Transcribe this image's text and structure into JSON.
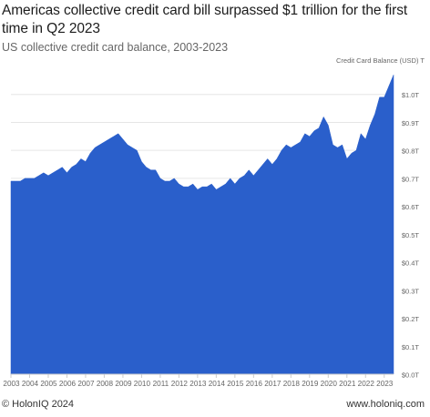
{
  "title": "Americas collective credit card bill surpassed $1 trillion for the first time in Q2 2023",
  "subtitle": "US collective credit card balance, 2003-2023",
  "footer": {
    "copyright": "© HolonIQ 2024",
    "site": "www.holoniq.com"
  },
  "colors": {
    "area": "#2a5fcb",
    "grid": "#e6e6e6",
    "tick_text": "#666666"
  },
  "chart_data": {
    "type": "area",
    "title": "",
    "ylabel": "Credit Card Balance (USD) T",
    "ylim": [
      0,
      1.1
    ],
    "yticks": [
      0.0,
      0.1,
      0.2,
      0.3,
      0.4,
      0.5,
      0.6,
      0.7,
      0.8,
      0.9,
      1.0
    ],
    "ytick_labels": [
      "$0.0T",
      "$0.1T",
      "$0.2T",
      "$0.3T",
      "$0.4T",
      "$0.5T",
      "$0.6T",
      "$0.7T",
      "$0.8T",
      "$0.9T",
      "$1.0T"
    ],
    "xtick_labels": [
      "2003",
      "2004",
      "2005",
      "2006",
      "2007",
      "2008",
      "2009",
      "2010",
      "2011",
      "2012",
      "2013",
      "2014",
      "2015",
      "2016",
      "2017",
      "2018",
      "2019",
      "2020",
      "2021",
      "2022",
      "2023"
    ],
    "xlim": [
      2003.0,
      2023.5
    ],
    "grid": true,
    "series": [
      {
        "x": [
          2003.0,
          2003.25,
          2003.5,
          2003.75,
          2004.0,
          2004.25,
          2004.5,
          2004.75,
          2005.0,
          2005.25,
          2005.5,
          2005.75,
          2006.0,
          2006.25,
          2006.5,
          2006.75,
          2007.0,
          2007.25,
          2007.5,
          2007.75,
          2008.0,
          2008.25,
          2008.5,
          2008.75,
          2009.0,
          2009.25,
          2009.5,
          2009.75,
          2010.0,
          2010.25,
          2010.5,
          2010.75,
          2011.0,
          2011.25,
          2011.5,
          2011.75,
          2012.0,
          2012.25,
          2012.5,
          2012.75,
          2013.0,
          2013.25,
          2013.5,
          2013.75,
          2014.0,
          2014.25,
          2014.5,
          2014.75,
          2015.0,
          2015.25,
          2015.5,
          2015.75,
          2016.0,
          2016.25,
          2016.5,
          2016.75,
          2017.0,
          2017.25,
          2017.5,
          2017.75,
          2018.0,
          2018.25,
          2018.5,
          2018.75,
          2019.0,
          2019.25,
          2019.5,
          2019.75,
          2020.0,
          2020.25,
          2020.5,
          2020.75,
          2021.0,
          2021.25,
          2021.5,
          2021.75,
          2022.0,
          2022.25,
          2022.5,
          2022.75,
          2023.0,
          2023.25,
          2023.5
        ],
        "values": [
          0.69,
          0.69,
          0.69,
          0.7,
          0.7,
          0.7,
          0.71,
          0.72,
          0.71,
          0.72,
          0.73,
          0.74,
          0.72,
          0.74,
          0.75,
          0.77,
          0.76,
          0.79,
          0.81,
          0.82,
          0.83,
          0.84,
          0.85,
          0.86,
          0.84,
          0.82,
          0.81,
          0.8,
          0.76,
          0.74,
          0.73,
          0.73,
          0.7,
          0.69,
          0.69,
          0.7,
          0.68,
          0.67,
          0.67,
          0.68,
          0.66,
          0.67,
          0.67,
          0.68,
          0.66,
          0.67,
          0.68,
          0.7,
          0.68,
          0.7,
          0.71,
          0.73,
          0.71,
          0.73,
          0.75,
          0.77,
          0.75,
          0.77,
          0.8,
          0.82,
          0.81,
          0.82,
          0.83,
          0.86,
          0.85,
          0.87,
          0.88,
          0.92,
          0.89,
          0.82,
          0.81,
          0.82,
          0.77,
          0.79,
          0.8,
          0.86,
          0.84,
          0.89,
          0.93,
          0.99,
          0.99,
          1.03,
          1.07
        ]
      }
    ]
  }
}
